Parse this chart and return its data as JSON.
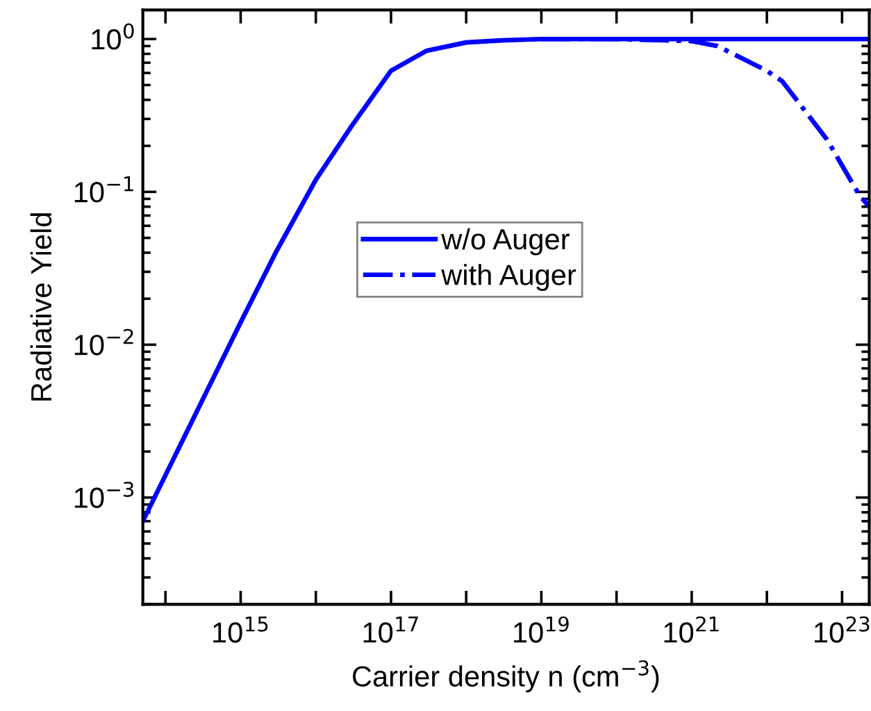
{
  "chart_data": {
    "type": "line",
    "xlabel": "Carrier density n (cm$^{−3}$)",
    "ylabel": "Radiative Yield",
    "log": "xy",
    "grid": false,
    "legend": "center",
    "marker": "none",
    "xlim": [
      50000000000000.0,
      2.3e+23
    ],
    "ylim": [
      0.0002,
      1.55
    ],
    "xticks": [
      {
        "value": 100000000000000.0,
        "label": null
      },
      {
        "value": 1000000000000000.0,
        "label": "10$^{15}$"
      },
      {
        "value": 1e+16,
        "label": null
      },
      {
        "value": 1e+17,
        "label": "10$^{17}$"
      },
      {
        "value": 1e+18,
        "label": null
      },
      {
        "value": 1e+19,
        "label": "10$^{19}$"
      },
      {
        "value": 1e+20,
        "label": null
      },
      {
        "value": 1e+21,
        "label": "10$^{21}$"
      },
      {
        "value": 1e+22,
        "label": null
      },
      {
        "value": 1e+23,
        "label": "10$^{23}$"
      }
    ],
    "yticks": [
      {
        "value": 0.001,
        "label": "10$^{−3}$"
      },
      {
        "value": 0.01,
        "label": "10$^{−2}$"
      },
      {
        "value": 0.1,
        "label": "10$^{−1}$"
      },
      {
        "value": 1,
        "label": "10$^{0}$"
      }
    ],
    "series": [
      {
        "name": "w/o Auger",
        "color": "#0000ff",
        "line_style": "solid",
        "x": [
          50000000000000.0,
          100000000000000.0,
          300000000000000.0,
          1000000000000000.0,
          3000000000000000.0,
          1e+16,
          3e+16,
          1e+17,
          3e+17,
          1e+18,
          3e+18,
          1e+19,
          1e+20,
          1e+21,
          1e+22,
          1e+23,
          2.3e+23
        ],
        "values": [
          0.0007,
          0.0014,
          0.0042,
          0.014,
          0.041,
          0.12,
          0.27,
          0.62,
          0.84,
          0.95,
          0.98,
          1,
          1,
          1,
          1,
          1,
          1
        ]
      },
      {
        "name": "with Auger",
        "color": "#0000ff",
        "line_style": "dashdot",
        "x": [
          1e+19,
          1e+20,
          1e+21,
          2.2e+21,
          1e+22,
          1.6e+22,
          6.3e+22,
          1.7e+23,
          2.3e+23
        ],
        "values": [
          1,
          1,
          0.97,
          0.9,
          0.62,
          0.53,
          0.22,
          0.095,
          0.08
        ]
      }
    ]
  }
}
